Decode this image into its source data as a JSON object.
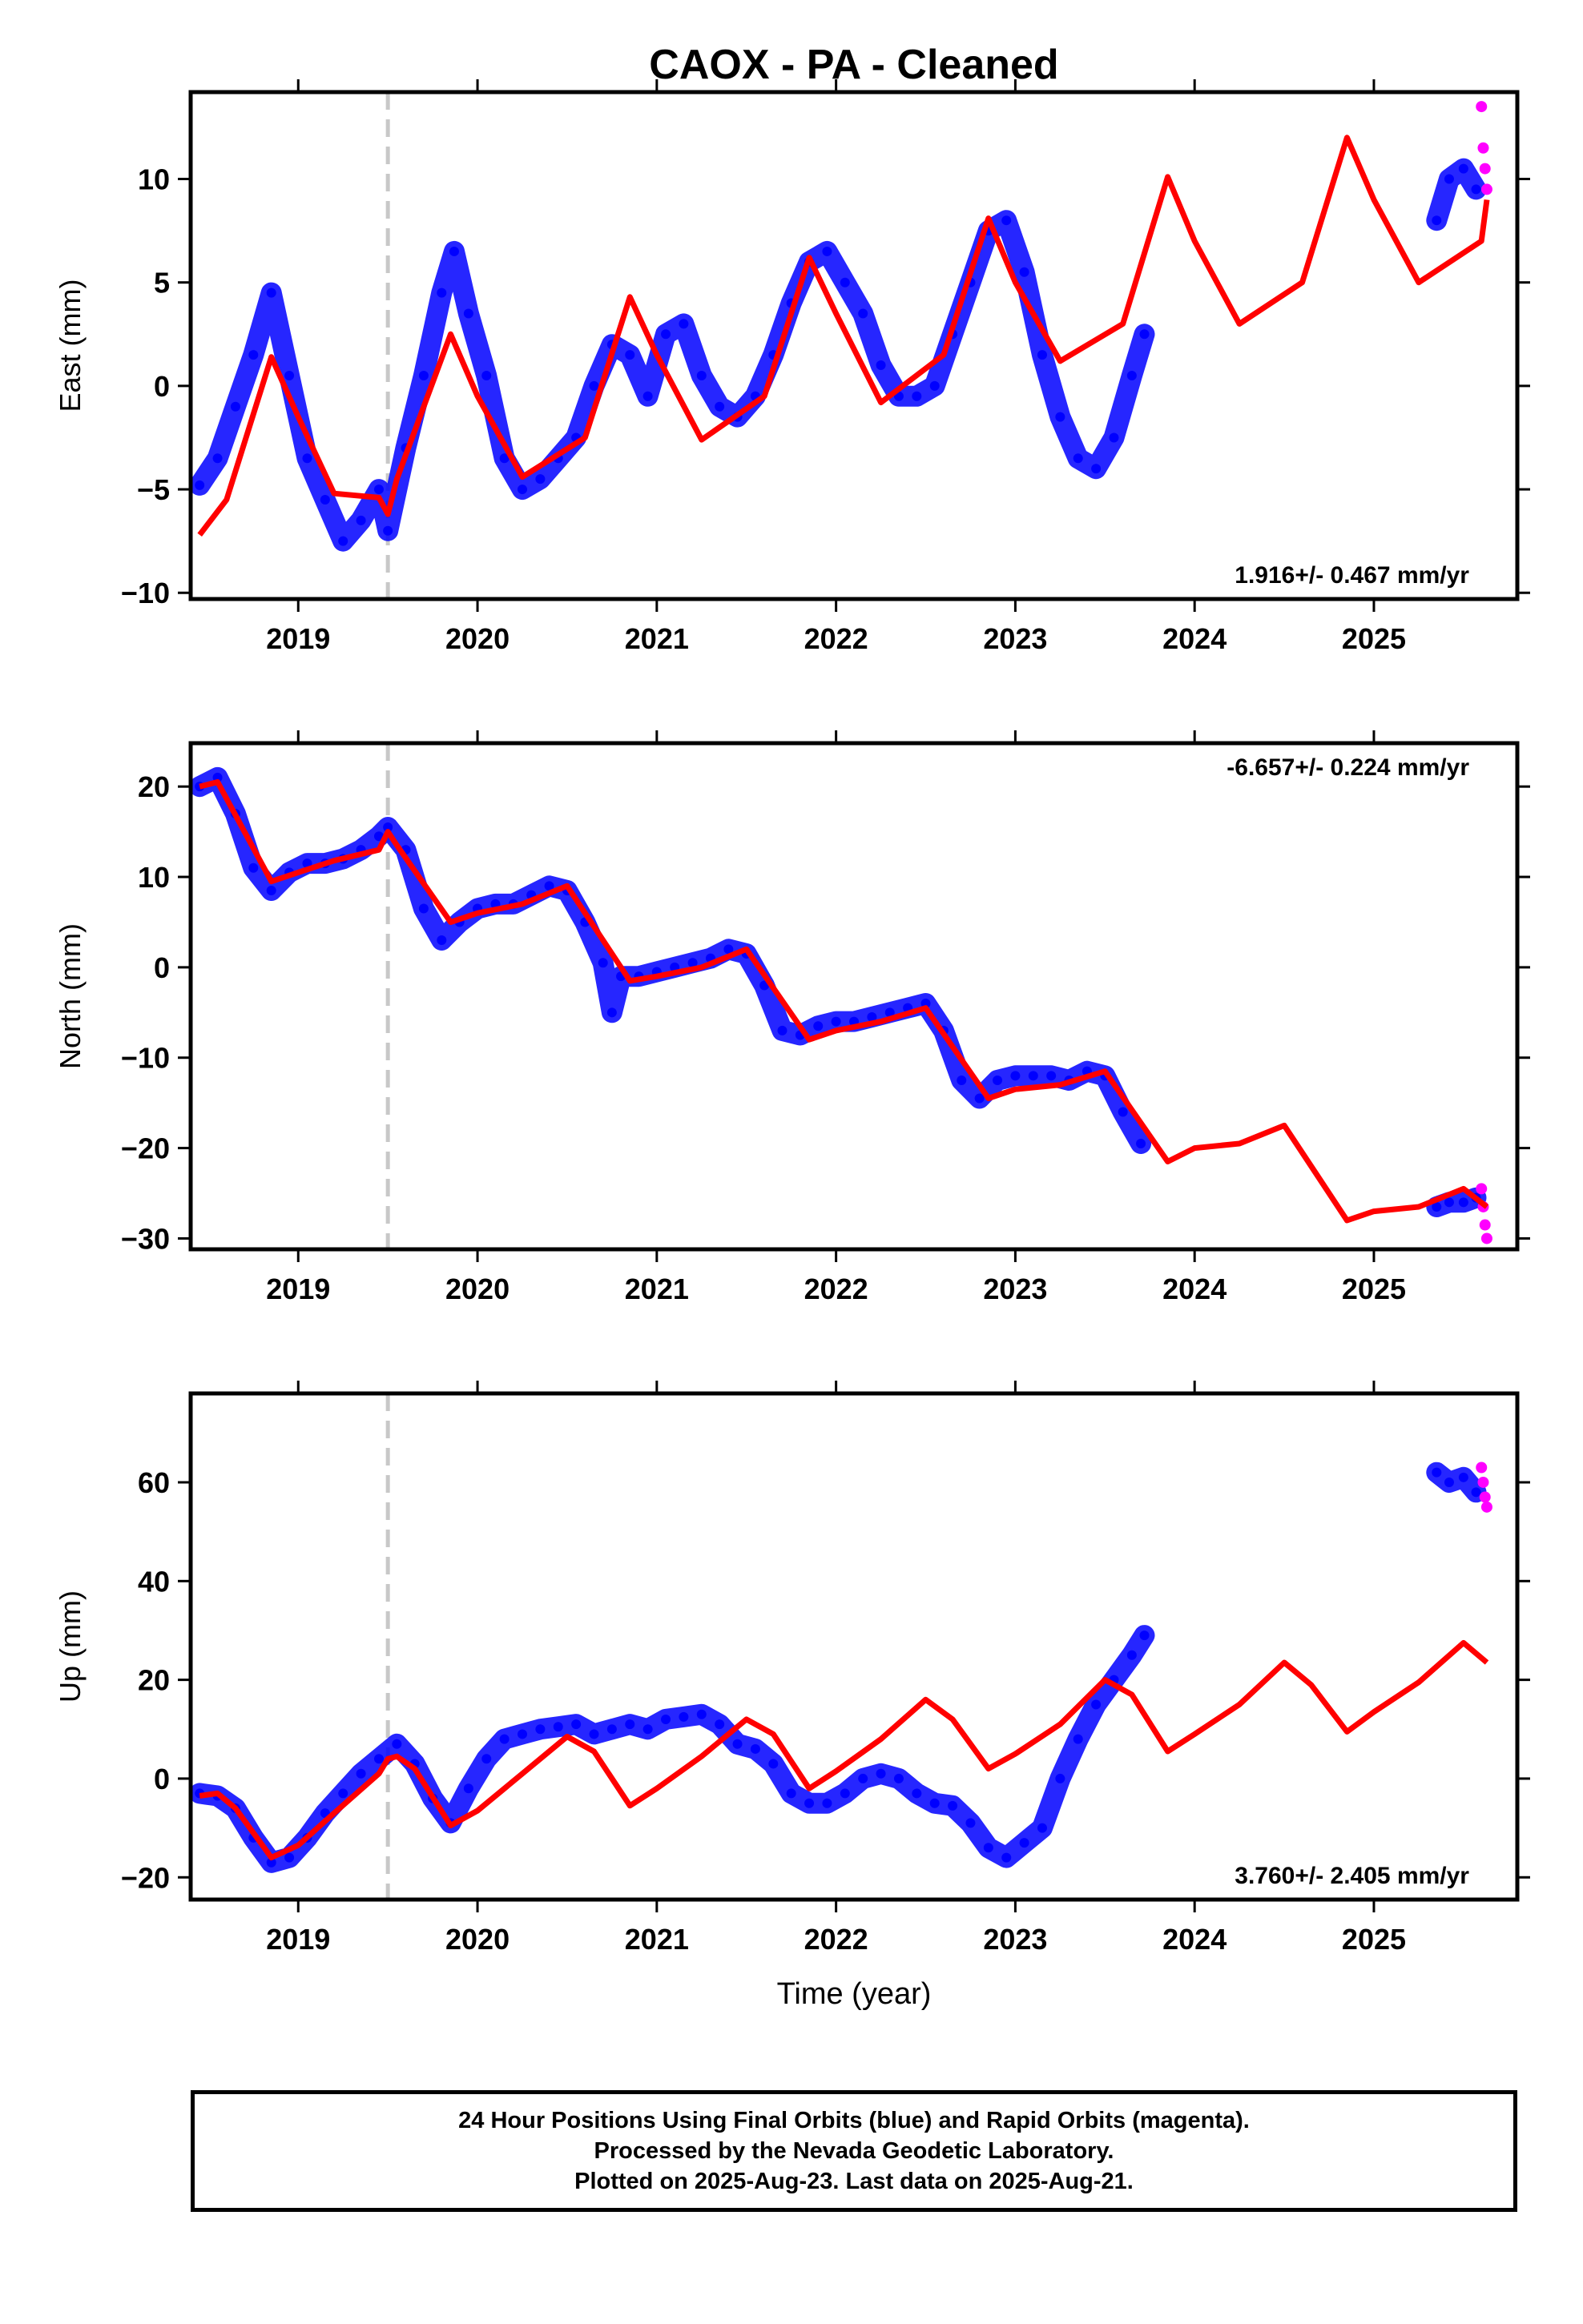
{
  "figure": {
    "title": "CAOX  - PA - Cleaned",
    "x_axis_label": "Time (year)"
  },
  "caption": {
    "line1": "24 Hour Positions Using Final Orbits (blue) and Rapid Orbits (magenta).",
    "line2": "Processed by the Nevada Geodetic Laboratory.",
    "line3": "Plotted on 2025-Aug-23. Last data on 2025-Aug-21."
  },
  "colors": {
    "final_orbits": "#0000ff",
    "rapid_orbits": "#ff00ff",
    "model": "#ff0000",
    "equipment_change": "#c8c8c8"
  },
  "chart_data": [
    {
      "type": "scatter",
      "panel": "east",
      "ylabel": "East (mm)",
      "xlim": [
        2018.4,
        2025.8
      ],
      "ylim": [
        -10.3,
        14.2
      ],
      "yticks": [
        -10,
        -5,
        0,
        5,
        10
      ],
      "xticks": [
        2019,
        2020,
        2021,
        2022,
        2023,
        2024,
        2025
      ],
      "rate_annotation": "1.916+/- 0.467 mm/yr",
      "rate_position": "bottom-right",
      "equipment_change_year": 2019.5,
      "final_orbits": {
        "x": [
          2018.45,
          2018.55,
          2018.65,
          2018.75,
          2018.85,
          2018.95,
          2019.05,
          2019.15,
          2019.25,
          2019.35,
          2019.45,
          2019.5,
          2019.6,
          2019.7,
          2019.8,
          2019.87,
          2019.95,
          2020.05,
          2020.15,
          2020.25,
          2020.35,
          2020.45,
          2020.55,
          2020.65,
          2020.75,
          2020.85,
          2020.95,
          2021.05,
          2021.15,
          2021.25,
          2021.35,
          2021.45,
          2021.55,
          2021.65,
          2021.75,
          2021.85,
          2021.95,
          2022.05,
          2022.15,
          2022.25,
          2022.35,
          2022.45,
          2022.55,
          2022.65,
          2022.75,
          2022.85,
          2022.95,
          2023.05,
          2023.15,
          2023.25,
          2023.35,
          2023.45,
          2023.55,
          2023.65,
          2023.72,
          2025.35,
          2025.42,
          2025.5,
          2025.57
        ],
        "y": [
          -4.8,
          -3.5,
          -1.0,
          1.5,
          4.5,
          0.5,
          -3.5,
          -5.5,
          -7.5,
          -6.5,
          -5.0,
          -7.0,
          -3.0,
          0.5,
          4.5,
          6.5,
          3.5,
          0.5,
          -3.5,
          -5.0,
          -4.5,
          -3.5,
          -2.5,
          0.0,
          2.0,
          1.5,
          -0.5,
          2.5,
          3.0,
          0.5,
          -1.0,
          -1.5,
          -0.5,
          1.5,
          4.0,
          6.0,
          6.5,
          5.0,
          3.5,
          1.0,
          -0.5,
          -0.5,
          0.0,
          2.5,
          5.0,
          7.5,
          8.0,
          5.5,
          1.5,
          -1.5,
          -3.5,
          -4.0,
          -2.5,
          0.5,
          2.5,
          8.0,
          10.0,
          10.5,
          9.5
        ]
      },
      "rapid_orbits": {
        "x": [
          2025.6,
          2025.61,
          2025.62,
          2025.63
        ],
        "y": [
          13.5,
          11.5,
          10.5,
          9.5
        ]
      },
      "model": {
        "x": [
          2018.45,
          2018.6,
          2018.85,
          2019.0,
          2019.2,
          2019.45,
          2019.5,
          2019.55,
          2019.85,
          2020.0,
          2020.25,
          2020.6,
          2020.85,
          2021.0,
          2021.25,
          2021.6,
          2021.85,
          2022.0,
          2022.25,
          2022.6,
          2022.85,
          2023.0,
          2023.25,
          2023.6,
          2023.85,
          2024.0,
          2024.25,
          2024.6,
          2024.85,
          2025.0,
          2025.25,
          2025.6,
          2025.63
        ],
        "y": [
          -7.2,
          -5.5,
          1.4,
          -1.5,
          -5.2,
          -5.4,
          -6.2,
          -4.5,
          2.5,
          -0.5,
          -4.4,
          -2.5,
          4.3,
          1.5,
          -2.6,
          -0.5,
          6.2,
          3.5,
          -0.8,
          1.5,
          8.1,
          5.0,
          1.2,
          3.0,
          10.1,
          7.0,
          3.0,
          5.0,
          12.0,
          9.0,
          5.0,
          7.0,
          9.0
        ]
      }
    },
    {
      "type": "scatter",
      "panel": "north",
      "ylabel": "North (mm)",
      "xlim": [
        2018.4,
        2025.8
      ],
      "ylim": [
        -31.2,
        24.8
      ],
      "yticks": [
        -30,
        -20,
        -10,
        0,
        10,
        20
      ],
      "xticks": [
        2019,
        2020,
        2021,
        2022,
        2023,
        2024,
        2025
      ],
      "rate_annotation": "-6.657+/- 0.224 mm/yr",
      "rate_position": "top-right",
      "equipment_change_year": 2019.5,
      "final_orbits": {
        "x": [
          2018.45,
          2018.55,
          2018.65,
          2018.75,
          2018.85,
          2018.95,
          2019.05,
          2019.15,
          2019.25,
          2019.35,
          2019.45,
          2019.5,
          2019.6,
          2019.7,
          2019.8,
          2019.9,
          2020.0,
          2020.1,
          2020.2,
          2020.3,
          2020.4,
          2020.5,
          2020.6,
          2020.7,
          2020.75,
          2020.8,
          2020.9,
          2021.0,
          2021.1,
          2021.2,
          2021.3,
          2021.4,
          2021.5,
          2021.6,
          2021.7,
          2021.8,
          2021.9,
          2022.0,
          2022.1,
          2022.2,
          2022.3,
          2022.4,
          2022.5,
          2022.6,
          2022.7,
          2022.8,
          2022.9,
          2023.0,
          2023.1,
          2023.2,
          2023.3,
          2023.4,
          2023.5,
          2023.6,
          2023.7,
          2025.35,
          2025.42,
          2025.5,
          2025.57
        ],
        "y": [
          20.0,
          21.0,
          17.0,
          11.0,
          8.5,
          10.5,
          11.5,
          11.5,
          12.0,
          13.0,
          14.5,
          15.5,
          13.0,
          6.5,
          3.0,
          5.0,
          6.5,
          7.0,
          7.0,
          8.0,
          9.0,
          8.5,
          5.0,
          0.5,
          -5.0,
          -1.0,
          -1.0,
          -0.5,
          0.0,
          0.5,
          1.0,
          2.0,
          1.5,
          -2.0,
          -7.0,
          -7.5,
          -6.5,
          -6.0,
          -6.0,
          -5.5,
          -5.0,
          -4.5,
          -4.0,
          -7.0,
          -12.5,
          -14.5,
          -12.5,
          -12.0,
          -12.0,
          -12.0,
          -12.5,
          -11.5,
          -12.0,
          -16.0,
          -19.5,
          -26.5,
          -26.0,
          -26.0,
          -25.5
        ]
      },
      "rapid_orbits": {
        "x": [
          2025.6,
          2025.61,
          2025.62,
          2025.63
        ],
        "y": [
          -24.5,
          -26.5,
          -28.5,
          -30.0
        ]
      },
      "model": {
        "x": [
          2018.45,
          2018.55,
          2018.85,
          2019.0,
          2019.2,
          2019.45,
          2019.5,
          2019.55,
          2019.85,
          2020.0,
          2020.25,
          2020.5,
          2020.85,
          2021.0,
          2021.25,
          2021.5,
          2021.85,
          2022.0,
          2022.25,
          2022.5,
          2022.85,
          2023.0,
          2023.25,
          2023.5,
          2023.85,
          2024.0,
          2024.25,
          2024.5,
          2024.85,
          2025.0,
          2025.25,
          2025.5,
          2025.63
        ],
        "y": [
          20.0,
          20.5,
          9.5,
          10.5,
          11.8,
          13.0,
          15.0,
          13.5,
          5.0,
          6.0,
          7.0,
          9.0,
          -1.5,
          -1.0,
          0.0,
          2.0,
          -8.0,
          -7.0,
          -6.0,
          -4.5,
          -14.5,
          -13.5,
          -13.0,
          -11.5,
          -21.5,
          -20.0,
          -19.5,
          -17.5,
          -28.0,
          -27.0,
          -26.5,
          -24.5,
          -26.5
        ]
      }
    },
    {
      "type": "scatter",
      "panel": "up",
      "ylabel": "Up (mm)",
      "xlabel": "Time (year)",
      "xlim": [
        2018.4,
        2025.8
      ],
      "ylim": [
        -24.5,
        78.0
      ],
      "yticks": [
        -20,
        0,
        20,
        40,
        60
      ],
      "xticks": [
        2019,
        2020,
        2021,
        2022,
        2023,
        2024,
        2025
      ],
      "rate_annotation": "3.760+/- 2.405 mm/yr",
      "rate_position": "bottom-right",
      "equipment_change_year": 2019.5,
      "final_orbits": {
        "x": [
          2018.45,
          2018.55,
          2018.65,
          2018.75,
          2018.85,
          2018.95,
          2019.05,
          2019.15,
          2019.25,
          2019.35,
          2019.45,
          2019.55,
          2019.65,
          2019.75,
          2019.85,
          2019.95,
          2020.05,
          2020.15,
          2020.25,
          2020.35,
          2020.45,
          2020.55,
          2020.65,
          2020.75,
          2020.85,
          2020.95,
          2021.05,
          2021.15,
          2021.25,
          2021.35,
          2021.45,
          2021.55,
          2021.65,
          2021.75,
          2021.85,
          2021.95,
          2022.05,
          2022.15,
          2022.25,
          2022.35,
          2022.45,
          2022.55,
          2022.65,
          2022.75,
          2022.85,
          2022.95,
          2023.05,
          2023.15,
          2023.25,
          2023.35,
          2023.45,
          2023.55,
          2023.65,
          2023.72,
          2025.35,
          2025.42,
          2025.5,
          2025.57
        ],
        "y": [
          -3.0,
          -3.5,
          -6.0,
          -12.0,
          -17.0,
          -16.0,
          -12.0,
          -7.0,
          -3.0,
          1.0,
          4.0,
          7.0,
          3.0,
          -4.0,
          -9.0,
          -2.0,
          4.0,
          8.0,
          9.0,
          10.0,
          10.5,
          11.0,
          9.0,
          10.0,
          11.0,
          10.0,
          12.0,
          12.5,
          13.0,
          11.0,
          7.0,
          6.0,
          3.0,
          -3.0,
          -5.0,
          -5.0,
          -3.0,
          0.0,
          1.0,
          0.0,
          -3.0,
          -5.0,
          -5.5,
          -9.0,
          -14.0,
          -16.0,
          -13.0,
          -10.0,
          0.0,
          8.0,
          15.0,
          20.0,
          25.0,
          29.0,
          62.0,
          60.0,
          61.0,
          58.0
        ]
      },
      "rapid_orbits": {
        "x": [
          2025.6,
          2025.61,
          2025.62,
          2025.63
        ],
        "y": [
          63.0,
          60.0,
          57.0,
          55.0
        ]
      },
      "model": {
        "x": [
          2018.45,
          2018.55,
          2018.65,
          2018.85,
          2019.0,
          2019.2,
          2019.45,
          2019.5,
          2019.55,
          2019.65,
          2019.85,
          2020.0,
          2020.25,
          2020.5,
          2020.65,
          2020.85,
          2021.0,
          2021.25,
          2021.5,
          2021.65,
          2021.85,
          2022.0,
          2022.25,
          2022.5,
          2022.65,
          2022.85,
          2023.0,
          2023.25,
          2023.5,
          2023.65,
          2023.85,
          2024.0,
          2024.25,
          2024.5,
          2024.65,
          2024.85,
          2025.0,
          2025.25,
          2025.5,
          2025.63
        ],
        "y": [
          -3.5,
          -3.0,
          -6.0,
          -16.0,
          -13.5,
          -7.0,
          1.0,
          4.0,
          4.5,
          2.0,
          -9.5,
          -6.5,
          1.0,
          8.5,
          5.5,
          -5.5,
          -2.0,
          4.5,
          12.0,
          9.0,
          -2.0,
          1.5,
          8.0,
          16.0,
          12.0,
          2.0,
          5.0,
          11.0,
          20.0,
          17.0,
          5.5,
          9.0,
          15.0,
          23.5,
          19.0,
          9.5,
          13.5,
          19.5,
          27.5,
          23.5
        ]
      }
    }
  ]
}
